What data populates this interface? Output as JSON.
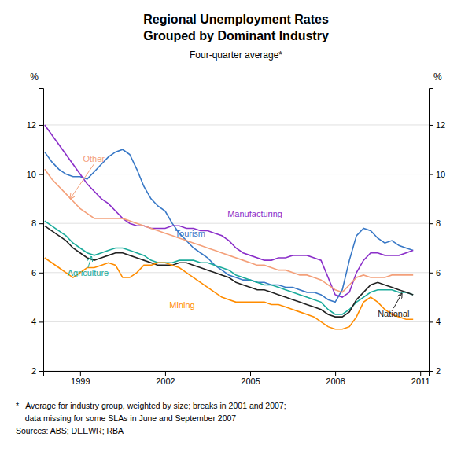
{
  "chart_data": {
    "type": "line",
    "title": [
      "Regional Unemployment Rates",
      "Grouped by Dominant Industry"
    ],
    "subtitle": "Four-quarter average*",
    "ylabel": "%",
    "y2label": "%",
    "xlim": [
      1997.7,
      2011.3
    ],
    "xticks": [
      1999,
      2002,
      2005,
      2008,
      2011
    ],
    "ylim": [
      2,
      13.5
    ],
    "yticks": [
      2,
      4,
      6,
      8,
      10,
      12
    ],
    "y2lim": [
      2,
      13.5
    ],
    "y2ticks": [
      2,
      4,
      6,
      8,
      10,
      12
    ],
    "grid": true,
    "x": [
      1997.75,
      1998.0,
      1998.25,
      1998.5,
      1998.75,
      1999.0,
      1999.25,
      1999.5,
      1999.75,
      2000.0,
      2000.25,
      2000.5,
      2000.75,
      2001.0,
      2001.25,
      2001.5,
      2001.75,
      2002.0,
      2002.25,
      2002.5,
      2002.75,
      2003.0,
      2003.25,
      2003.5,
      2003.75,
      2004.0,
      2004.25,
      2004.5,
      2004.75,
      2005.0,
      2005.25,
      2005.5,
      2005.75,
      2006.0,
      2006.25,
      2006.5,
      2006.75,
      2007.0,
      2007.25,
      2007.5,
      2007.75,
      2008.0,
      2008.25,
      2008.5,
      2008.75,
      2009.0,
      2009.25,
      2009.5,
      2009.75,
      2010.0,
      2010.25,
      2010.5,
      2010.75
    ],
    "series": [
      {
        "name": "Tourism",
        "color": "#3878C6",
        "values": [
          10.9,
          10.5,
          10.2,
          10.0,
          9.9,
          9.9,
          9.8,
          10.1,
          10.4,
          10.7,
          10.9,
          11.0,
          10.8,
          10.2,
          9.5,
          9.0,
          8.7,
          8.5,
          8.0,
          7.6,
          7.3,
          7.0,
          6.8,
          6.6,
          6.3,
          6.1,
          5.9,
          5.8,
          5.7,
          5.7,
          5.6,
          5.6,
          5.5,
          5.5,
          5.4,
          5.4,
          5.3,
          5.2,
          5.2,
          5.1,
          4.9,
          4.8,
          5.3,
          6.5,
          7.5,
          7.8,
          7.7,
          7.4,
          7.2,
          7.3,
          7.1,
          7.0,
          6.9
        ]
      },
      {
        "name": "Manufacturing",
        "color": "#8B2FC9",
        "values": [
          12.0,
          11.6,
          11.2,
          10.8,
          10.4,
          10.0,
          9.6,
          9.3,
          9.0,
          8.8,
          8.5,
          8.2,
          8.0,
          7.9,
          7.9,
          7.8,
          7.8,
          7.8,
          7.9,
          7.9,
          7.8,
          7.8,
          7.7,
          7.7,
          7.6,
          7.5,
          7.3,
          7.0,
          6.8,
          6.7,
          6.6,
          6.5,
          6.5,
          6.6,
          6.6,
          6.7,
          6.7,
          6.7,
          6.6,
          6.5,
          5.8,
          5.1,
          5.0,
          5.2,
          6.0,
          6.5,
          6.8,
          6.8,
          6.7,
          6.7,
          6.7,
          6.8,
          6.9
        ]
      },
      {
        "name": "Other",
        "color": "#F4A07A",
        "values": [
          10.2,
          9.8,
          9.5,
          9.2,
          8.9,
          8.6,
          8.4,
          8.2,
          8.2,
          8.2,
          8.2,
          8.2,
          8.1,
          8.0,
          7.9,
          7.8,
          7.7,
          7.6,
          7.5,
          7.4,
          7.3,
          7.2,
          7.1,
          7.0,
          6.9,
          6.8,
          6.7,
          6.6,
          6.5,
          6.4,
          6.3,
          6.3,
          6.2,
          6.1,
          6.1,
          6.0,
          5.9,
          5.9,
          5.8,
          5.7,
          5.5,
          5.3,
          5.2,
          5.5,
          5.8,
          5.9,
          5.8,
          5.8,
          5.8,
          5.9,
          5.9,
          5.9,
          5.9
        ]
      },
      {
        "name": "Agriculture",
        "color": "#1AAB9B",
        "values": [
          8.1,
          7.9,
          7.7,
          7.5,
          7.2,
          7.0,
          6.8,
          6.7,
          6.8,
          6.9,
          7.0,
          7.0,
          6.9,
          6.8,
          6.7,
          6.5,
          6.4,
          6.4,
          6.4,
          6.5,
          6.5,
          6.5,
          6.4,
          6.4,
          6.3,
          6.2,
          6.1,
          5.9,
          5.8,
          5.7,
          5.6,
          5.5,
          5.5,
          5.4,
          5.3,
          5.2,
          5.1,
          5.0,
          4.9,
          4.8,
          4.5,
          4.3,
          4.3,
          4.5,
          4.8,
          5.0,
          5.2,
          5.3,
          5.3,
          5.3,
          5.2,
          5.2,
          5.1
        ]
      },
      {
        "name": "National",
        "color": "#222222",
        "values": [
          7.9,
          7.7,
          7.5,
          7.3,
          7.0,
          6.8,
          6.6,
          6.5,
          6.6,
          6.7,
          6.8,
          6.8,
          6.7,
          6.6,
          6.5,
          6.4,
          6.3,
          6.3,
          6.3,
          6.4,
          6.4,
          6.3,
          6.2,
          6.1,
          6.0,
          5.9,
          5.8,
          5.6,
          5.5,
          5.4,
          5.3,
          5.3,
          5.2,
          5.1,
          5.0,
          4.9,
          4.8,
          4.7,
          4.6,
          4.5,
          4.3,
          4.2,
          4.2,
          4.4,
          4.9,
          5.2,
          5.5,
          5.6,
          5.5,
          5.4,
          5.3,
          5.2,
          5.1
        ]
      },
      {
        "name": "Mining",
        "color": "#FF8C00",
        "values": [
          6.6,
          6.4,
          6.2,
          6.0,
          5.8,
          6.0,
          6.2,
          6.2,
          6.3,
          6.4,
          6.3,
          5.8,
          5.8,
          6.0,
          6.3,
          6.3,
          6.4,
          6.4,
          6.3,
          6.2,
          6.0,
          5.8,
          5.6,
          5.4,
          5.2,
          5.0,
          4.9,
          4.8,
          4.8,
          4.8,
          4.8,
          4.8,
          4.7,
          4.7,
          4.6,
          4.5,
          4.4,
          4.3,
          4.2,
          4.0,
          3.8,
          3.7,
          3.7,
          3.8,
          4.2,
          4.8,
          5.0,
          4.8,
          4.5,
          4.3,
          4.2,
          4.1,
          4.1
        ]
      }
    ],
    "annotations": [
      {
        "text": "Other",
        "x": 1999.1,
        "y": 10.5,
        "target": [
          1998.65,
          9.0
        ]
      },
      {
        "text": "Agriculture",
        "x": 1998.55,
        "y": 5.85,
        "target": [
          1999.4,
          6.65
        ]
      },
      {
        "text": "Tourism",
        "x": 2002.35,
        "y": 7.45
      },
      {
        "text": "Manufacturing",
        "x": 2004.2,
        "y": 8.25
      },
      {
        "text": "National",
        "x": 2009.5,
        "y": 4.2,
        "target": [
          2010.35,
          5.15
        ]
      },
      {
        "text": "Mining",
        "x": 2002.15,
        "y": 4.55
      }
    ],
    "notes": [
      "*   Average for industry group, weighted by size; breaks in 2001 and 2007;",
      "    data missing for some SLAs in June and September 2007",
      "Sources: ABS; DEEWR; RBA"
    ]
  }
}
